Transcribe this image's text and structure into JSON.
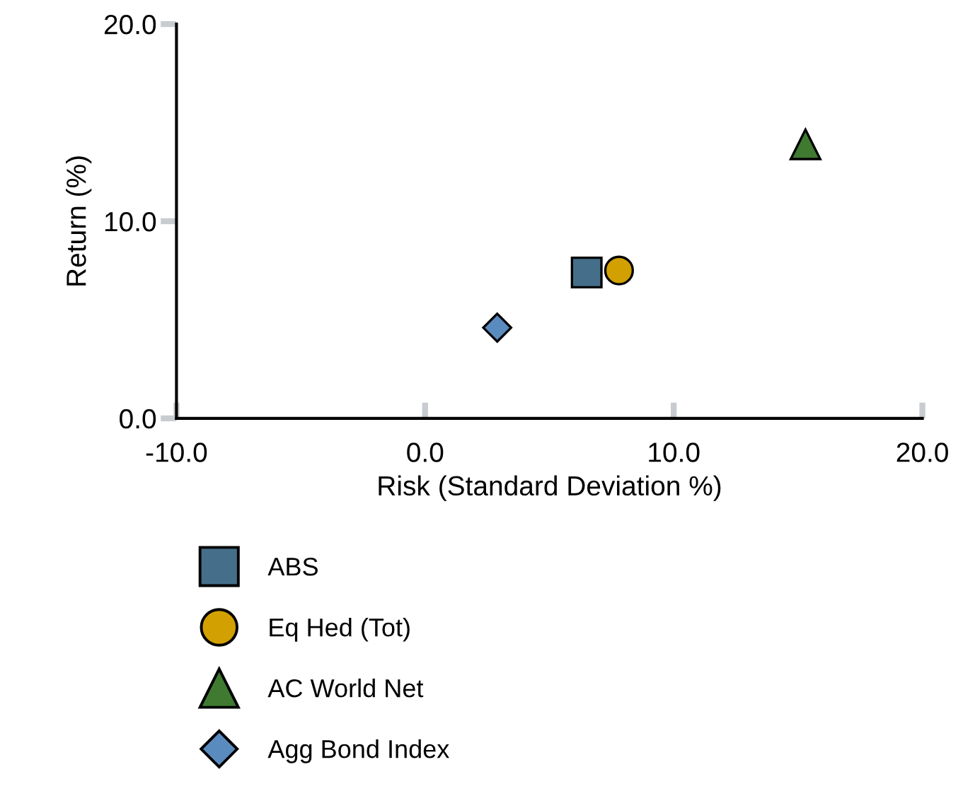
{
  "chart_data": {
    "type": "scatter",
    "xlabel": "Risk (Standard Deviation %)",
    "ylabel": "Return (%)",
    "xlim": [
      -10,
      20
    ],
    "xticks": [
      {
        "value": -10,
        "label": "-10.0"
      },
      {
        "value": 0,
        "label": "0.0"
      },
      {
        "value": 10,
        "label": "10.0"
      },
      {
        "value": 20,
        "label": "20.0"
      }
    ],
    "ylim": [
      0,
      20
    ],
    "yticks": [
      {
        "value": 0,
        "label": "0.0"
      },
      {
        "value": 10,
        "label": "10.0"
      },
      {
        "value": 20,
        "label": "20.0"
      }
    ],
    "grid": false,
    "legend": "bottom",
    "series": [
      {
        "name": "ABS",
        "color": "#456e8a",
        "marker": "square",
        "x": [
          6.5
        ],
        "values": [
          7.4
        ]
      },
      {
        "name": "Eq Hed (Tot)",
        "color": "#d2a000",
        "marker": "circle",
        "x": [
          7.8
        ],
        "values": [
          7.5
        ]
      },
      {
        "name": "AC World Net",
        "color": "#3f7a30",
        "marker": "triangle",
        "x": [
          15.3
        ],
        "values": [
          13.9
        ]
      },
      {
        "name": "Agg Bond Index",
        "color": "#5a8bbf",
        "marker": "diamond",
        "x": [
          2.9
        ],
        "values": [
          4.6
        ]
      }
    ]
  }
}
